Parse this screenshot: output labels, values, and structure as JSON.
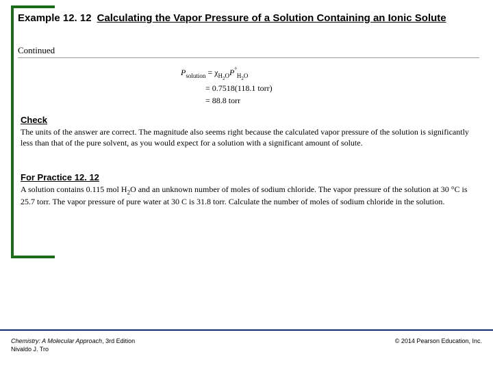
{
  "header": {
    "example_label": "Example 12. 12",
    "title_line": "Calculating the Vapor Pressure of a Solution Containing an Ionic Solute",
    "continued": "Continued"
  },
  "equation": {
    "lhs": "P",
    "lhs_sub": "solution",
    "equals": " = ",
    "chi_sub": "H₂O",
    "p_sub": "H₂O",
    "line2": "= 0.7518(118.1 torr)",
    "line3": "= 88.8 torr"
  },
  "check": {
    "heading": "Check",
    "text": "The units of the answer are correct. The magnitude also seems right because the calculated vapor pressure of the solution is significantly less than that of the pure solvent, as you would expect for a solution with a significant amount of solute."
  },
  "practice": {
    "heading": "For Practice 12. 12",
    "text_before_h2o": "A solution contains 0.115 mol H",
    "h2o_sub": "2",
    "text_after_h2o": "O and an unknown number of moles of sodium chloride. The vapor pressure of the solution at 30 °C is 25.7 torr. The vapor pressure of pure water at 30 C is 31.8 torr. Calculate the number of moles of sodium chloride in the solution."
  },
  "footer": {
    "book_title": "Chemistry: A Molecular Approach",
    "edition": ", 3rd Edition",
    "author": "Nivaldo J. Tro",
    "copyright": "© 2014 Pearson Education, Inc."
  },
  "colors": {
    "green": "#1a6b1a",
    "footer_line": "#0a2a6b"
  }
}
